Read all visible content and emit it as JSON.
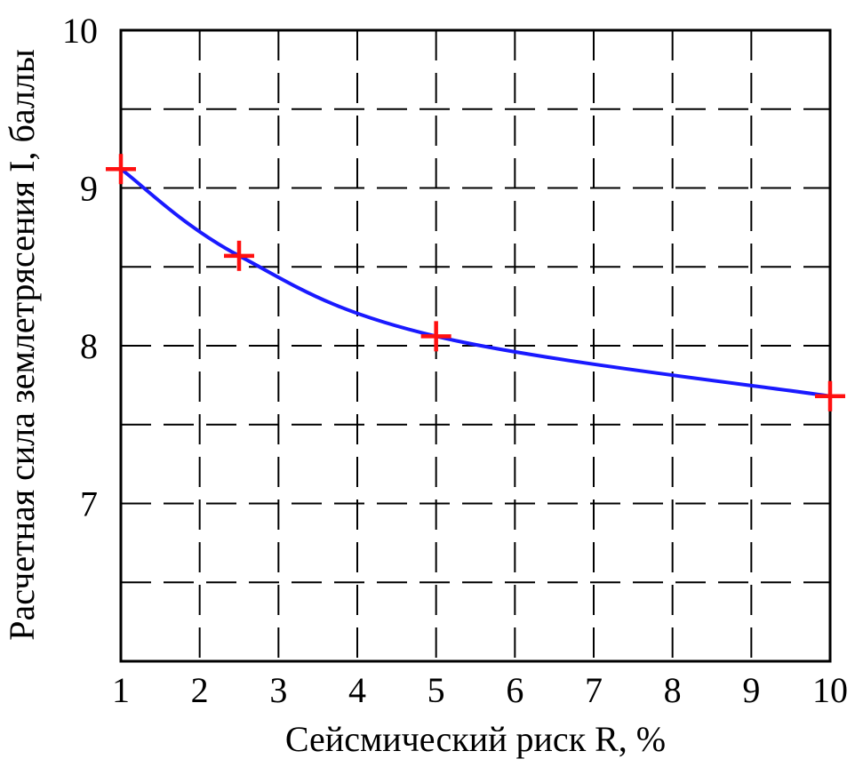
{
  "chart_data": {
    "type": "line",
    "title": "",
    "xlabel": "Сейсмический риск R, %",
    "ylabel": "Расчетная сила землетрясения I, баллы",
    "x_ticks": [
      "1",
      "2",
      "3",
      "4",
      "5",
      "6",
      "7",
      "8",
      "9",
      "10"
    ],
    "y_ticks": [
      "7",
      "8",
      "9",
      "10"
    ],
    "y_labeled_values": [
      7,
      8,
      9,
      10
    ],
    "y_grid_values": [
      6.5,
      7,
      7.5,
      8,
      8.5,
      9,
      9.5,
      10
    ],
    "xlim": [
      1,
      10
    ],
    "ylim": [
      6,
      10
    ],
    "grid": true,
    "series": [
      {
        "color": "#1a1aff",
        "marker_color": "#ff1010",
        "marker": "plus",
        "points": [
          {
            "x": 1,
            "y": 9.12
          },
          {
            "x": 2.5,
            "y": 8.57
          },
          {
            "x": 5,
            "y": 8.06
          },
          {
            "x": 10,
            "y": 7.68
          }
        ]
      }
    ]
  }
}
